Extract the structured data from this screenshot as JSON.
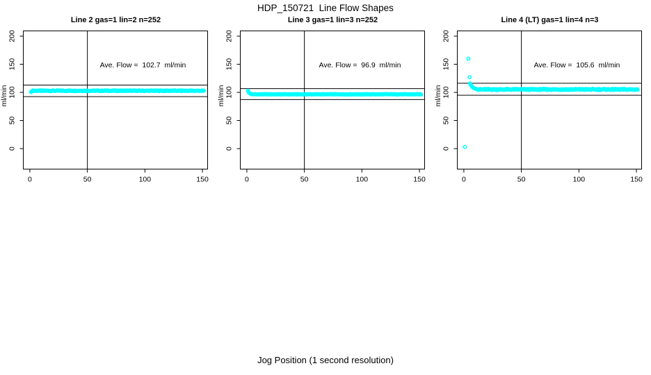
{
  "page": {
    "main_title": "HDP_150721  Line Flow Shapes",
    "x_axis_outer_label": "Jog Position (1 second resolution)",
    "background_color": "#ffffff",
    "line_color": "#000000"
  },
  "chart_data": [
    {
      "type": "scatter",
      "title": "Line 2 gas=1 lin=2 n=252",
      "annotation": "Ave. Flow =  102.7  ml/min",
      "ave_flow_ml_min": 102.7,
      "n_points": 252,
      "ylabel": "ml/min",
      "x_ticks": [
        0,
        50,
        100,
        150
      ],
      "y_ticks": [
        0,
        50,
        100,
        150,
        200
      ],
      "xlim": [
        -5.7,
        154.5
      ],
      "ylim": [
        -36.4,
        209.3
      ],
      "vline_x": 50,
      "hlines": [
        113.0,
        92.4
      ],
      "marker_color": "#00ffff",
      "grid": false,
      "series": {
        "points": [
          [
            1,
            100.8
          ],
          [
            1.5,
            101.4
          ],
          [
            2,
            102.1
          ]
        ],
        "decay": [],
        "flat": {
          "x_start": 2.5,
          "x_end": 151.5,
          "step": 0.6,
          "y": 102.9,
          "jitter": 0.7
        }
      }
    },
    {
      "type": "scatter",
      "title": "Line 3 gas=1 lin=3 n=252",
      "annotation": "Ave. Flow =  96.9  ml/min",
      "ave_flow_ml_min": 96.9,
      "n_points": 252,
      "ylabel": "ml/min",
      "x_ticks": [
        0,
        50,
        100,
        150
      ],
      "y_ticks": [
        0,
        50,
        100,
        150,
        200
      ],
      "xlim": [
        -5.7,
        154.5
      ],
      "ylim": [
        -36.4,
        209.3
      ],
      "vline_x": 50,
      "hlines": [
        106.6,
        87.2
      ],
      "marker_color": "#00ffff",
      "grid": false,
      "series": {
        "points": [],
        "decay": [
          [
            1,
            103.0
          ],
          [
            1.5,
            100.9
          ],
          [
            2,
            99.4
          ],
          [
            2.5,
            98.3
          ],
          [
            3,
            97.6
          ],
          [
            3.5,
            97.1
          ],
          [
            4,
            96.8
          ]
        ],
        "flat": {
          "x_start": 4.5,
          "x_end": 151.5,
          "step": 0.6,
          "y": 96.6,
          "jitter": 0.5
        }
      }
    },
    {
      "type": "scatter",
      "title": "Line 4 (LT) gas=1 lin=4 n=3",
      "annotation": "Ave. Flow =  105.6  ml/min",
      "ave_flow_ml_min": 105.6,
      "n_points": 3,
      "ylabel": "ml/min",
      "x_ticks": [
        0,
        50,
        100,
        150
      ],
      "y_ticks": [
        0,
        50,
        100,
        150,
        200
      ],
      "xlim": [
        -5.7,
        154.5
      ],
      "ylim": [
        -36.4,
        209.3
      ],
      "vline_x": 50,
      "hlines": [
        116.2,
        95.0
      ],
      "marker_color": "#00ffff",
      "grid": false,
      "series": {
        "points": [
          [
            1,
            3
          ],
          [
            4,
            160
          ],
          [
            5,
            127
          ]
        ],
        "decay": [
          [
            5.5,
            116.0
          ],
          [
            6,
            113.8
          ],
          [
            6.5,
            112.0
          ],
          [
            7,
            110.6
          ],
          [
            7.5,
            109.5
          ],
          [
            8,
            108.6
          ],
          [
            8.5,
            107.9
          ],
          [
            9,
            107.3
          ],
          [
            10,
            106.4
          ],
          [
            11,
            105.9
          ],
          [
            12,
            105.5
          ]
        ],
        "flat": {
          "x_start": 12.5,
          "x_end": 151.5,
          "step": 0.55,
          "y": 105.2,
          "jitter": 1.1
        }
      }
    }
  ]
}
